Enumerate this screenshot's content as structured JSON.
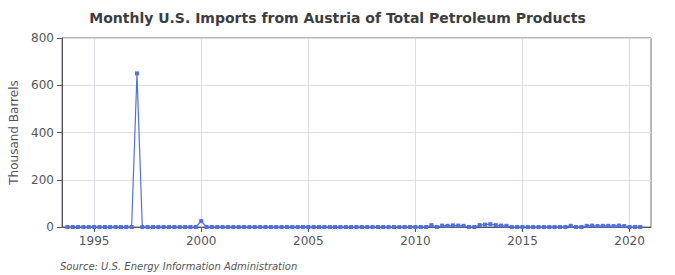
{
  "chart_data": {
    "type": "line",
    "title": "Monthly U.S. Imports from Austria of Total Petroleum Products",
    "ylabel": "Thousand Barrels",
    "annotations": [
      "Source: U.S. Energy Information Administration"
    ],
    "marker": "square",
    "grid": true,
    "xlim": [
      1993.5,
      2021.0
    ],
    "xticks": [
      1995,
      2000,
      2005,
      2010,
      2015,
      2020
    ],
    "ylim": [
      0,
      800
    ],
    "yticks": [
      0,
      200,
      400,
      600,
      800
    ],
    "x": [
      1993.75,
      1994.0,
      1994.25,
      1994.5,
      1994.75,
      1995.0,
      1995.25,
      1995.5,
      1995.75,
      1996.0,
      1996.25,
      1996.5,
      1996.75,
      1997.0,
      1997.25,
      1997.5,
      1997.75,
      1998.0,
      1998.25,
      1998.5,
      1998.75,
      1999.0,
      1999.25,
      1999.5,
      1999.75,
      2000.0,
      2000.25,
      2000.5,
      2000.75,
      2001.0,
      2001.25,
      2001.5,
      2001.75,
      2002.0,
      2002.25,
      2002.5,
      2002.75,
      2003.0,
      2003.25,
      2003.5,
      2003.75,
      2004.0,
      2004.25,
      2004.5,
      2004.75,
      2005.0,
      2005.25,
      2005.5,
      2005.75,
      2006.0,
      2006.25,
      2006.5,
      2006.75,
      2007.0,
      2007.25,
      2007.5,
      2007.75,
      2008.0,
      2008.25,
      2008.5,
      2008.75,
      2009.0,
      2009.25,
      2009.5,
      2009.75,
      2010.0,
      2010.25,
      2010.5,
      2010.75,
      2011.0,
      2011.25,
      2011.5,
      2011.75,
      2012.0,
      2012.25,
      2012.5,
      2012.75,
      2013.0,
      2013.25,
      2013.5,
      2013.75,
      2014.0,
      2014.25,
      2014.5,
      2014.75,
      2015.0,
      2015.25,
      2015.5,
      2015.75,
      2016.0,
      2016.25,
      2016.5,
      2016.75,
      2017.0,
      2017.25,
      2017.5,
      2017.75,
      2018.0,
      2018.25,
      2018.5,
      2018.75,
      2019.0,
      2019.25,
      2019.5,
      2019.75,
      2020.0,
      2020.25,
      2020.5
    ],
    "values": [
      0,
      0,
      0,
      0,
      0,
      0,
      0,
      0,
      0,
      0,
      0,
      0,
      0,
      650,
      0,
      0,
      0,
      0,
      0,
      0,
      0,
      0,
      0,
      0,
      0,
      25,
      0,
      0,
      0,
      0,
      0,
      0,
      0,
      0,
      0,
      0,
      0,
      0,
      0,
      0,
      0,
      0,
      0,
      0,
      0,
      0,
      0,
      0,
      0,
      0,
      0,
      0,
      0,
      0,
      0,
      0,
      0,
      0,
      0,
      0,
      0,
      0,
      0,
      0,
      0,
      0,
      0,
      0,
      8,
      0,
      6,
      5,
      7,
      6,
      5,
      0,
      0,
      8,
      10,
      12,
      8,
      6,
      5,
      0,
      0,
      0,
      0,
      0,
      0,
      0,
      0,
      0,
      0,
      0,
      5,
      0,
      0,
      5,
      6,
      4,
      5,
      5,
      4,
      6,
      4,
      0,
      0,
      0
    ]
  }
}
